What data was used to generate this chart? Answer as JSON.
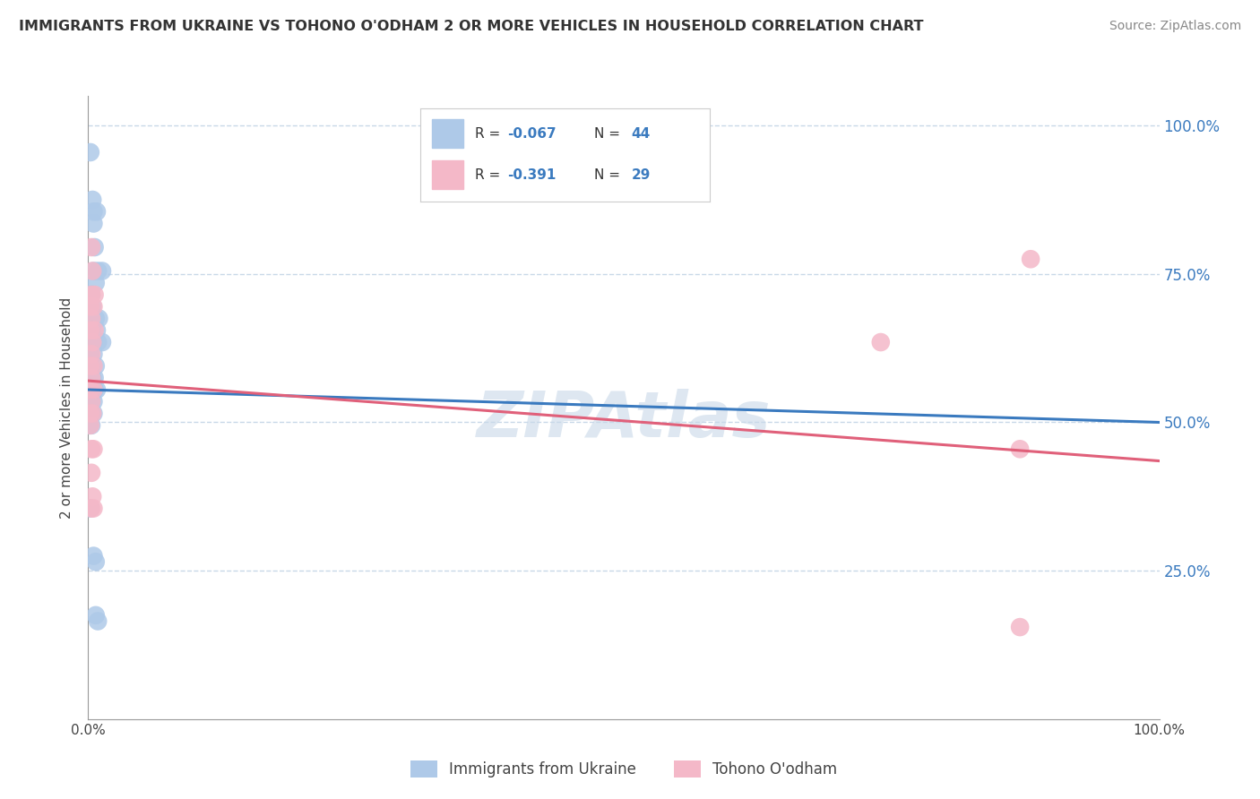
{
  "title": "IMMIGRANTS FROM UKRAINE VS TOHONO O'ODHAM 2 OR MORE VEHICLES IN HOUSEHOLD CORRELATION CHART",
  "source": "Source: ZipAtlas.com",
  "ylabel": "2 or more Vehicles in Household",
  "legend_blue_label": "Immigrants from Ukraine",
  "legend_pink_label": "Tohono O'odham",
  "watermark": "ZIPAtlas",
  "blue_color": "#aec9e8",
  "pink_color": "#f4b8c8",
  "blue_line_color": "#3a7abf",
  "pink_line_color": "#e0607a",
  "blue_scatter": [
    [
      0.002,
      0.955
    ],
    [
      0.004,
      0.875
    ],
    [
      0.005,
      0.855
    ],
    [
      0.008,
      0.855
    ],
    [
      0.005,
      0.835
    ],
    [
      0.006,
      0.795
    ],
    [
      0.005,
      0.755
    ],
    [
      0.009,
      0.755
    ],
    [
      0.013,
      0.755
    ],
    [
      0.007,
      0.735
    ],
    [
      0.003,
      0.715
    ],
    [
      0.004,
      0.695
    ],
    [
      0.003,
      0.675
    ],
    [
      0.007,
      0.675
    ],
    [
      0.01,
      0.675
    ],
    [
      0.004,
      0.655
    ],
    [
      0.008,
      0.655
    ],
    [
      0.005,
      0.635
    ],
    [
      0.009,
      0.635
    ],
    [
      0.013,
      0.635
    ],
    [
      0.002,
      0.615
    ],
    [
      0.005,
      0.615
    ],
    [
      0.003,
      0.595
    ],
    [
      0.007,
      0.595
    ],
    [
      0.002,
      0.575
    ],
    [
      0.004,
      0.575
    ],
    [
      0.006,
      0.575
    ],
    [
      0.002,
      0.555
    ],
    [
      0.004,
      0.555
    ],
    [
      0.006,
      0.555
    ],
    [
      0.008,
      0.555
    ],
    [
      0.001,
      0.535
    ],
    [
      0.003,
      0.535
    ],
    [
      0.005,
      0.535
    ],
    [
      0.001,
      0.515
    ],
    [
      0.003,
      0.515
    ],
    [
      0.005,
      0.515
    ],
    [
      0.001,
      0.495
    ],
    [
      0.003,
      0.495
    ],
    [
      0.002,
      0.355
    ],
    [
      0.005,
      0.275
    ],
    [
      0.007,
      0.265
    ],
    [
      0.007,
      0.175
    ],
    [
      0.009,
      0.165
    ]
  ],
  "pink_scatter": [
    [
      0.003,
      0.795
    ],
    [
      0.004,
      0.755
    ],
    [
      0.003,
      0.715
    ],
    [
      0.006,
      0.715
    ],
    [
      0.002,
      0.695
    ],
    [
      0.005,
      0.695
    ],
    [
      0.003,
      0.675
    ],
    [
      0.002,
      0.655
    ],
    [
      0.006,
      0.655
    ],
    [
      0.004,
      0.635
    ],
    [
      0.003,
      0.615
    ],
    [
      0.002,
      0.595
    ],
    [
      0.005,
      0.595
    ],
    [
      0.003,
      0.575
    ],
    [
      0.002,
      0.555
    ],
    [
      0.005,
      0.555
    ],
    [
      0.003,
      0.535
    ],
    [
      0.002,
      0.515
    ],
    [
      0.004,
      0.515
    ],
    [
      0.002,
      0.495
    ],
    [
      0.003,
      0.455
    ],
    [
      0.005,
      0.455
    ],
    [
      0.003,
      0.415
    ],
    [
      0.004,
      0.375
    ],
    [
      0.003,
      0.355
    ],
    [
      0.005,
      0.355
    ],
    [
      0.88,
      0.775
    ],
    [
      0.74,
      0.635
    ],
    [
      0.87,
      0.455
    ],
    [
      0.87,
      0.155
    ]
  ],
  "blue_R": -0.067,
  "pink_R": -0.391,
  "blue_line": [
    [
      0.0,
      0.555
    ],
    [
      1.0,
      0.5
    ]
  ],
  "pink_line": [
    [
      0.0,
      0.57
    ],
    [
      1.0,
      0.435
    ]
  ],
  "x_range": [
    0,
    1.0
  ],
  "y_range": [
    0.0,
    1.05
  ],
  "yticks": [
    0.25,
    0.5,
    0.75,
    1.0
  ],
  "ytick_labels": [
    "25.0%",
    "50.0%",
    "75.0%",
    "100.0%"
  ]
}
